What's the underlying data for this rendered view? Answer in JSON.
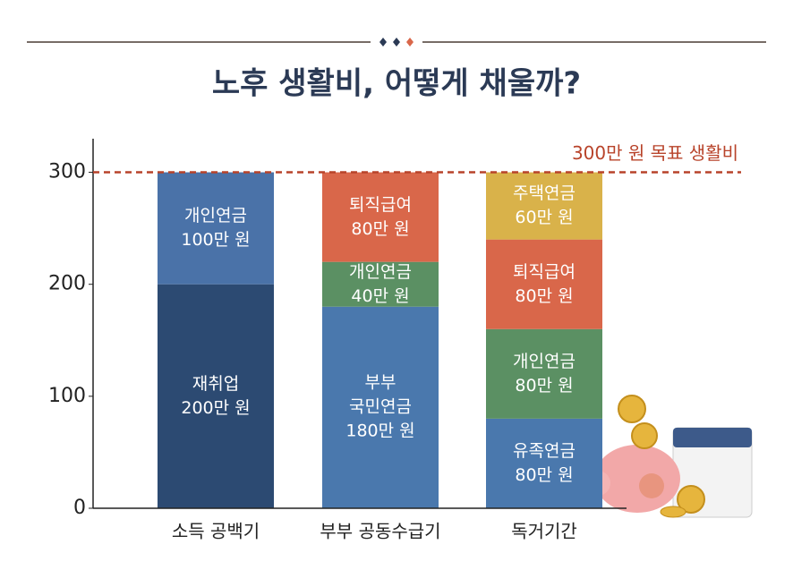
{
  "chart_data": {
    "type": "stacked_bar",
    "title": "노후 생활비, 어떻게 채울까?",
    "categories": [
      "소득 공백기",
      "부부 공동수급기",
      "독거기간"
    ],
    "stacks": [
      {
        "segments": [
          {
            "name": "재취업",
            "value": 200,
            "value_label": "200만 원",
            "color": "#2c4a72"
          },
          {
            "name": "개인연금",
            "value": 100,
            "value_label": "100만 원",
            "color": "#4a72a8"
          }
        ]
      },
      {
        "segments": [
          {
            "name": "부부\n국민연금",
            "value": 180,
            "value_label": "180만 원",
            "color": "#4a78ad"
          },
          {
            "name": "개인연금",
            "value": 40,
            "value_label": "40만 원",
            "color": "#5b9063"
          },
          {
            "name": "퇴직급여",
            "value": 80,
            "value_label": "80만 원",
            "color": "#d9674a"
          }
        ]
      },
      {
        "segments": [
          {
            "name": "유족연금",
            "value": 80,
            "value_label": "80만 원",
            "color": "#4a78ad"
          },
          {
            "name": "개인연금",
            "value": 80,
            "value_label": "80만 원",
            "color": "#5b9063"
          },
          {
            "name": "퇴직급여",
            "value": 80,
            "value_label": "80만 원",
            "color": "#d9674a"
          },
          {
            "name": "주택연금",
            "value": 60,
            "value_label": "60만 원",
            "color": "#d9b24a"
          }
        ]
      }
    ],
    "target": {
      "value": 300,
      "label": "300만 원 목표 생활비",
      "color": "#b8432a"
    },
    "ylim": [
      0,
      330
    ],
    "yticks": [
      0,
      100,
      200,
      300
    ]
  }
}
